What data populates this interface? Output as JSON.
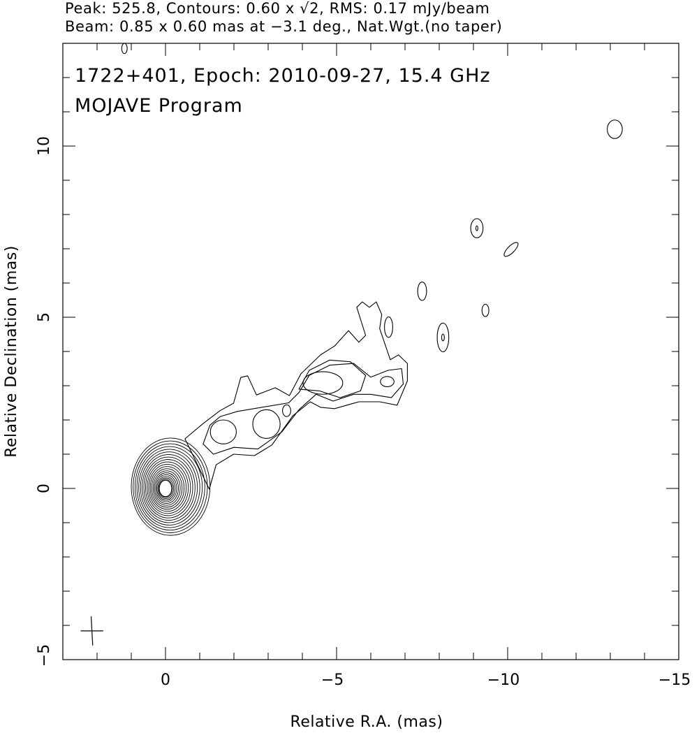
{
  "header": {
    "line1": "Peak: 525.8, Contours: 0.60 x √2, RMS: 0.17 mJy/beam",
    "line2": "Beam: 0.85 x 0.60 mas at −3.1 deg., Nat.Wgt.(no taper)"
  },
  "chart_data": {
    "type": "contour",
    "title": "1722+401, Epoch: 2010-09-27, 15.4 GHz",
    "subtitle": "MOJAVE Program",
    "xlabel": "Relative R.A. (mas)",
    "ylabel": "Relative Declination (mas)",
    "xlim": [
      3,
      -15
    ],
    "ylim": [
      -5,
      13
    ],
    "xticks": [
      {
        "v": 0,
        "label": "0"
      },
      {
        "v": -5,
        "label": "−5"
      },
      {
        "v": -10,
        "label": "−10"
      },
      {
        "v": -15,
        "label": "−15"
      }
    ],
    "yticks": [
      {
        "v": -5,
        "label": "−5"
      },
      {
        "v": 0,
        "label": "0"
      },
      {
        "v": 5,
        "label": "5"
      },
      {
        "v": 10,
        "label": "10"
      }
    ],
    "minor_tick_step": 1,
    "grid": false,
    "line_color": "#000000",
    "beam": {
      "ra": 2.15,
      "dec": -4.16,
      "major_mas": 0.85,
      "minor_mas": 0.6,
      "pa_deg": -3.1
    },
    "core_contours": {
      "count": 20,
      "center": [
        0,
        0
      ],
      "outer_center": [
        -0.15,
        0.05
      ],
      "outer_radii": [
        1.15,
        1.42
      ],
      "inner_radii": [
        0.18,
        0.24
      ]
    },
    "polygons": [
      [
        [
          -0.57,
          1.45
        ],
        [
          -1.08,
          1.88
        ],
        [
          -1.59,
          2.27
        ],
        [
          -1.99,
          2.49
        ],
        [
          -2.2,
          3.24
        ],
        [
          -2.4,
          3.29
        ],
        [
          -2.66,
          2.73
        ],
        [
          -3.21,
          2.94
        ],
        [
          -3.62,
          2.71
        ],
        [
          -3.96,
          3.35
        ],
        [
          -4.53,
          3.9
        ],
        [
          -4.94,
          4.16
        ],
        [
          -5.35,
          4.61
        ],
        [
          -5.65,
          4.27
        ],
        [
          -5.85,
          4.47
        ],
        [
          -5.59,
          5.29
        ],
        [
          -5.75,
          5.45
        ],
        [
          -5.96,
          5.29
        ],
        [
          -6.16,
          5.45
        ],
        [
          -6.32,
          5.08
        ],
        [
          -6.26,
          4.67
        ],
        [
          -6.57,
          3.76
        ],
        [
          -6.81,
          3.9
        ],
        [
          -7.07,
          3.65
        ],
        [
          -7.07,
          3.14
        ],
        [
          -6.77,
          2.43
        ],
        [
          -6.26,
          2.53
        ],
        [
          -5.65,
          2.53
        ],
        [
          -4.94,
          2.33
        ],
        [
          -4.53,
          2.37
        ],
        [
          -4.23,
          2.53
        ],
        [
          -3.72,
          2.12
        ],
        [
          -3.11,
          1.27
        ],
        [
          -2.6,
          0.96
        ],
        [
          -1.99,
          1.0
        ],
        [
          -1.48,
          0.69
        ],
        [
          -1.28,
          -0.02
        ]
      ],
      [
        [
          -1.1,
          1.3
        ],
        [
          -1.3,
          1.85
        ],
        [
          -1.6,
          2.1
        ],
        [
          -2.1,
          2.25
        ],
        [
          -3.0,
          2.4
        ],
        [
          -3.6,
          2.5
        ],
        [
          -3.9,
          2.8
        ],
        [
          -4.2,
          3.3
        ],
        [
          -4.8,
          3.6
        ],
        [
          -5.5,
          3.65
        ],
        [
          -6.0,
          3.25
        ],
        [
          -6.5,
          3.45
        ],
        [
          -6.9,
          3.5
        ],
        [
          -6.95,
          3.05
        ],
        [
          -6.6,
          2.65
        ],
        [
          -6.0,
          2.75
        ],
        [
          -5.5,
          2.75
        ],
        [
          -4.9,
          2.55
        ],
        [
          -4.4,
          2.75
        ],
        [
          -3.9,
          2.3
        ],
        [
          -3.4,
          1.65
        ],
        [
          -2.7,
          1.15
        ],
        [
          -2.0,
          1.2
        ],
        [
          -1.4,
          1.0
        ]
      ],
      [
        [
          -3.9,
          2.9
        ],
        [
          -4.2,
          3.45
        ],
        [
          -4.8,
          3.75
        ],
        [
          -5.4,
          3.7
        ],
        [
          -5.85,
          3.3
        ],
        [
          -5.7,
          2.85
        ],
        [
          -5.1,
          2.65
        ],
        [
          -4.5,
          2.85
        ]
      ]
    ],
    "ellipses": [
      {
        "ra": -1.69,
        "dec": 1.65,
        "rx": 0.38,
        "ry": 0.35
      },
      {
        "ra": -2.95,
        "dec": 1.88,
        "rx": 0.4,
        "ry": 0.42
      },
      {
        "ra": -3.54,
        "dec": 2.27,
        "rx": 0.12,
        "ry": 0.17
      },
      {
        "ra": -4.6,
        "dec": 3.08,
        "rx": 0.58,
        "ry": 0.33
      },
      {
        "ra": -6.48,
        "dec": 3.12,
        "rx": 0.2,
        "ry": 0.15
      },
      {
        "ra": -6.52,
        "dec": 4.71,
        "rx": 0.12,
        "ry": 0.3
      },
      {
        "ra": -7.5,
        "dec": 5.76,
        "rx": 0.13,
        "ry": 0.27
      },
      {
        "ra": -8.11,
        "dec": 4.41,
        "rx": 0.17,
        "ry": 0.42
      },
      {
        "ra": -8.11,
        "dec": 4.41,
        "rx": 0.04,
        "ry": 0.1
      },
      {
        "ra": -9.35,
        "dec": 5.2,
        "rx": 0.1,
        "ry": 0.18
      },
      {
        "ra": -9.1,
        "dec": 7.6,
        "rx": 0.18,
        "ry": 0.28
      },
      {
        "ra": -9.1,
        "dec": 7.6,
        "rx": 0.03,
        "ry": 0.07
      },
      {
        "ra": -10.1,
        "dec": 6.98,
        "rx": 0.27,
        "ry": 0.1,
        "rot": -45
      },
      {
        "ra": -13.13,
        "dec": 10.49,
        "rx": 0.22,
        "ry": 0.27
      },
      {
        "ra": 1.2,
        "dec": 12.85,
        "rx": 0.08,
        "ry": 0.15
      }
    ]
  }
}
